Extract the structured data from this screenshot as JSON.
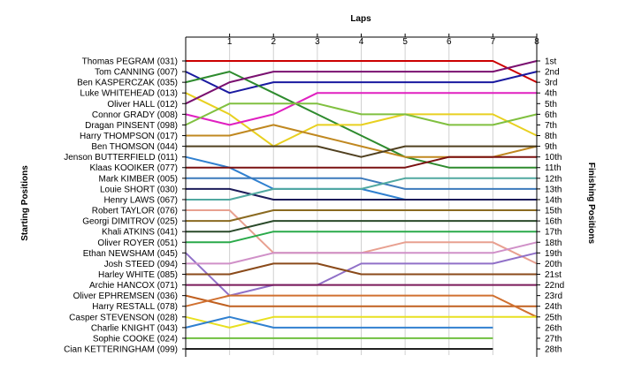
{
  "chart_data": {
    "type": "line",
    "title": "",
    "xlabel": "Laps",
    "ylabel_left": "Starting Positions",
    "ylabel_right": "Finishing Positions",
    "x_ticks": [
      1,
      2,
      3,
      4,
      5,
      6,
      7,
      8
    ],
    "x_range": [
      0,
      8
    ],
    "y_range": [
      1,
      28
    ],
    "y_inverted": true,
    "grid": "vertical",
    "drivers": [
      "Thomas PEGRAM (031)",
      "Tom CANNING (007)",
      "Ben KASPERCZAK (035)",
      "Luke WHITEHEAD (013)",
      "Oliver HALL (012)",
      "Connor GRADY (008)",
      "Dragan PINSENT (098)",
      "Harry THOMPSON (017)",
      "Ben THOMSON (044)",
      "Jenson BUTTERFIELD (011)",
      "Klaas KOOIKER (077)",
      "Mark KIMBER (005)",
      "Louie SHORT (030)",
      "Henry LAWS (067)",
      "Robert TAYLOR (076)",
      "Georgi DIMITROV (025)",
      "Khali ATKINS (041)",
      "Oliver ROYER (051)",
      "Ethan NEWSHAM (045)",
      "Josh STEED (094)",
      "Harley WHITE (085)",
      "Archie HANCOX (071)",
      "Oliver EPHREMSEN (036)",
      "Harry RESTALL (078)",
      "Casper STEVENSON (028)",
      "Charlie KNIGHT (043)",
      "Sophie COOKE (024)",
      "Cian KETTERINGHAM (099)"
    ],
    "finishing_labels": [
      "1st",
      "2nd",
      "3rd",
      "4th",
      "5th",
      "6th",
      "7th",
      "8th",
      "9th",
      "10th",
      "11th",
      "12th",
      "13th",
      "14th",
      "15th",
      "16th",
      "17th",
      "18th",
      "19th",
      "20th",
      "21st",
      "22nd",
      "23rd",
      "24th",
      "25th",
      "26th",
      "27th",
      "28th"
    ],
    "series": [
      {
        "color": "#cc0000",
        "positions": [
          1,
          1,
          1,
          1,
          1,
          1,
          1,
          1,
          3
        ]
      },
      {
        "color": "#1a1aa0",
        "positions": [
          2,
          4,
          3,
          3,
          3,
          3,
          3,
          3,
          2
        ]
      },
      {
        "color": "#2e8b2e",
        "positions": [
          3,
          2,
          4,
          6,
          8,
          10,
          11,
          11,
          11
        ]
      },
      {
        "color": "#e8d020",
        "positions": [
          4,
          6,
          9,
          7,
          7,
          6,
          6,
          6,
          8
        ]
      },
      {
        "color": "#7a1070",
        "positions": [
          5,
          3,
          2,
          2,
          2,
          2,
          2,
          2,
          1
        ]
      },
      {
        "color": "#e020c0",
        "positions": [
          6,
          7,
          6,
          4,
          4,
          4,
          4,
          4,
          4
        ]
      },
      {
        "color": "#80c040",
        "positions": [
          7,
          5,
          5,
          5,
          6,
          6,
          7,
          7,
          6
        ]
      },
      {
        "color": "#c08820",
        "positions": [
          8,
          8,
          7,
          8,
          9,
          10,
          10,
          10,
          9
        ]
      },
      {
        "color": "#504020",
        "positions": [
          9,
          9,
          9,
          9,
          10,
          9,
          9,
          9,
          9
        ]
      },
      {
        "color": "#3080d0",
        "positions": [
          10,
          11,
          13,
          13,
          13,
          14,
          14,
          14,
          14
        ]
      },
      {
        "color": "#7a1010",
        "positions": [
          11,
          11,
          11,
          11,
          11,
          11,
          10,
          10,
          10
        ]
      },
      {
        "color": "#3c7abc",
        "positions": [
          12,
          12,
          12,
          12,
          12,
          13,
          13,
          13,
          13
        ]
      },
      {
        "color": "#1c1c5a",
        "positions": [
          13,
          13,
          14,
          14,
          14,
          14,
          14,
          14,
          14
        ]
      },
      {
        "color": "#50a8a0",
        "positions": [
          14,
          14,
          13,
          13,
          13,
          12,
          12,
          12,
          12
        ]
      },
      {
        "color": "#e8a090",
        "positions": [
          15,
          15,
          19,
          19,
          19,
          18,
          18,
          18,
          20
        ]
      },
      {
        "color": "#8a6a20",
        "positions": [
          16,
          16,
          15,
          15,
          15,
          15,
          15,
          15,
          15
        ]
      },
      {
        "color": "#2a4a2a",
        "positions": [
          17,
          17,
          16,
          16,
          16,
          16,
          16,
          16,
          16
        ]
      },
      {
        "color": "#2aaa4a",
        "positions": [
          18,
          18,
          17,
          17,
          17,
          17,
          17,
          17,
          17
        ]
      },
      {
        "color": "#9070c8",
        "positions": [
          19,
          23,
          22,
          22,
          20,
          20,
          20,
          20,
          19
        ]
      },
      {
        "color": "#d090c8",
        "positions": [
          20,
          20,
          19,
          19,
          19,
          19,
          19,
          19,
          18
        ]
      },
      {
        "color": "#8a4a1a",
        "positions": [
          21,
          21,
          20,
          20,
          21,
          21,
          21,
          21,
          21
        ]
      },
      {
        "color": "#7a1a5a",
        "positions": [
          22,
          22,
          22,
          22,
          22,
          22,
          22,
          22,
          22
        ]
      },
      {
        "color": "#c06020",
        "positions": [
          23,
          24,
          24,
          24,
          24,
          24,
          24,
          24,
          24
        ]
      },
      {
        "color": "#d07030",
        "positions": [
          24,
          23,
          23,
          23,
          23,
          23,
          23,
          23,
          25
        ]
      },
      {
        "color": "#e8e020",
        "positions": [
          25,
          26,
          25,
          25,
          25,
          25,
          25,
          25,
          25
        ]
      },
      {
        "color": "#3080d0",
        "positions": [
          26,
          25,
          26,
          26,
          26,
          26,
          26,
          26
        ]
      },
      {
        "color": "#70c040",
        "positions": [
          27,
          27,
          27,
          27,
          27,
          27,
          27,
          27
        ]
      },
      {
        "color": "#202020",
        "positions": [
          28,
          28,
          28,
          28,
          28,
          28,
          28,
          28
        ]
      }
    ]
  }
}
